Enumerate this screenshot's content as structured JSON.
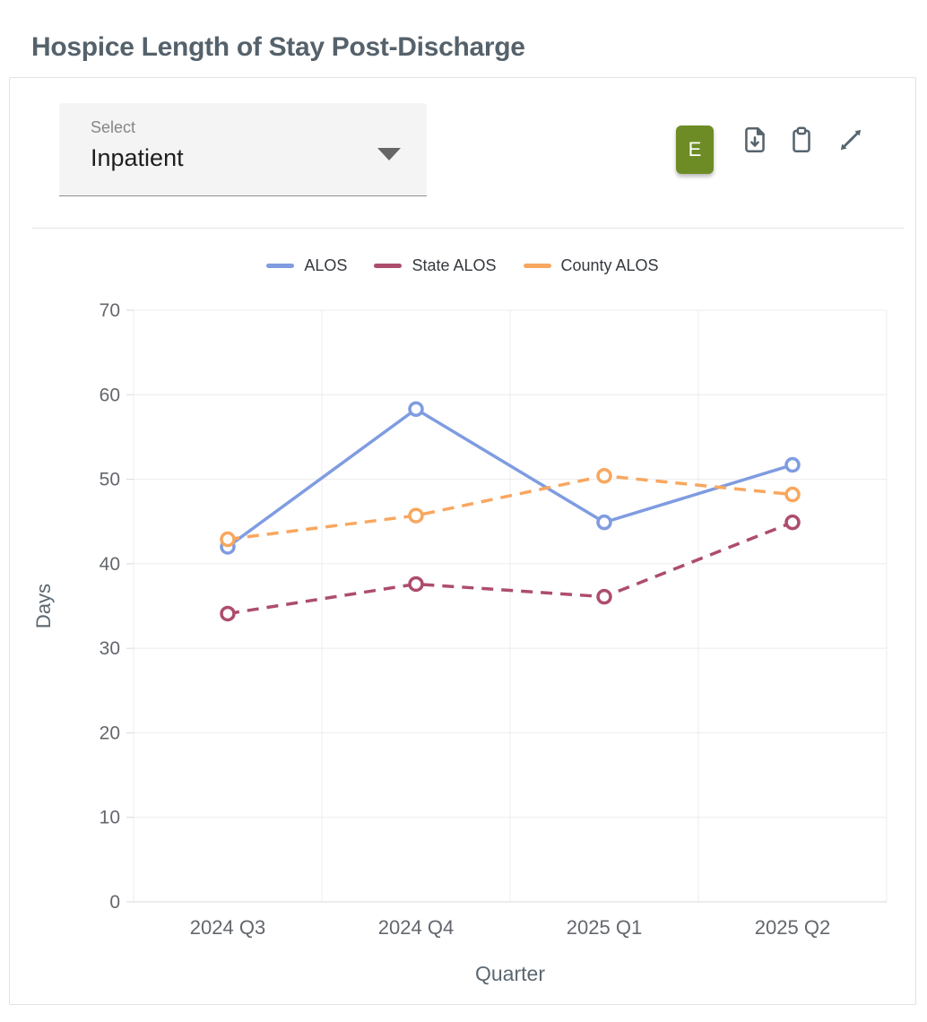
{
  "page": {
    "title": "Hospice Length of Stay Post-Discharge"
  },
  "card": {
    "select": {
      "label": "Select",
      "value": "Inpatient"
    },
    "toolbar": {
      "edit_button_label": "E",
      "icons": [
        "file-download-icon",
        "clipboard-icon",
        "expand-icon"
      ]
    }
  },
  "chart_data": {
    "type": "line",
    "categories": [
      "2024 Q3",
      "2024 Q4",
      "2025 Q1",
      "2025 Q2"
    ],
    "series": [
      {
        "name": "ALOS",
        "values": [
          42.0,
          58.3,
          44.9,
          51.7
        ],
        "color": "#7f9ce1",
        "style": "solid"
      },
      {
        "name": "State ALOS",
        "values": [
          34.1,
          37.6,
          36.1,
          44.9
        ],
        "color": "#ad4d6d",
        "style": "dashed"
      },
      {
        "name": "County ALOS",
        "values": [
          42.9,
          45.7,
          50.4,
          48.2
        ],
        "color": "#f8a75f",
        "style": "dashed"
      }
    ],
    "xlabel": "Quarter",
    "ylabel": "Days",
    "ylim": [
      0,
      70
    ],
    "ytick_step": 10,
    "grid": true,
    "legend_position": "top-center"
  },
  "colors": {
    "title": "#55626c",
    "accent_green": "#6e8c26",
    "icon": "#56646e",
    "grid": "#ececec",
    "axis": "#d9d9d9",
    "tick_label": "#63676d",
    "axis_title": "#5b6770"
  }
}
